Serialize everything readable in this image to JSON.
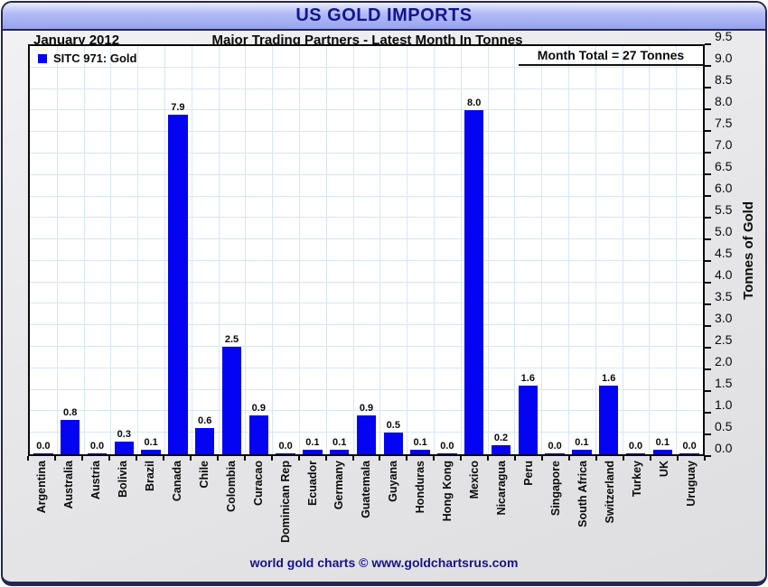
{
  "header": {
    "title": "US GOLD IMPORTS"
  },
  "subtitle": {
    "date": "January 2012",
    "text": "Major Trading Partners - Latest Month In Tonnes"
  },
  "legend": {
    "label": "SITC 971: Gold"
  },
  "annotation": {
    "month_total": "Month Total = 27 Tonnes"
  },
  "footer": {
    "text": "world gold charts © www.goldchartsrus.com"
  },
  "colors": {
    "bar": "#0404F2",
    "grid": "#D7E6F4",
    "accent_navy": "#14148C",
    "titlebar_top": "#E9ECFE",
    "titlebar_bottom": "#98A3EE"
  },
  "chart_data": {
    "type": "bar",
    "title": "US GOLD IMPORTS",
    "subtitle": "Major Trading Partners - Latest Month In Tonnes",
    "period": "January 2012",
    "legend": [
      "SITC 971: Gold"
    ],
    "legend_position": "top-left",
    "annotations": [
      "Month Total = 27 Tonnes"
    ],
    "xlabel": "",
    "ylabel": "Tonnes of Gold",
    "ylim": [
      0,
      9.5
    ],
    "ytick_step": 0.5,
    "grid": true,
    "categories": [
      "Argentina",
      "Australia",
      "Austria",
      "Bolivia",
      "Brazil",
      "Canada",
      "Chile",
      "Colombia",
      "Curacao",
      "Dominican Rep",
      "Ecuador",
      "Germany",
      "Guatemala",
      "Guyana",
      "Honduras",
      "Hong Kong",
      "Mexico",
      "Nicaragua",
      "Peru",
      "Singapore",
      "South Africa",
      "Switzerland",
      "Turkey",
      "UK",
      "Uruguay"
    ],
    "values": [
      0.0,
      0.8,
      0.0,
      0.3,
      0.1,
      7.9,
      0.6,
      2.5,
      0.9,
      0.0,
      0.1,
      0.1,
      0.9,
      0.5,
      0.1,
      0.0,
      8.0,
      0.2,
      1.6,
      0.0,
      0.1,
      1.6,
      0.0,
      0.1,
      0.0
    ],
    "value_labels": [
      "0.0",
      "0.8",
      "0.0",
      "0.3",
      "0.1",
      "7.9",
      "0.6",
      "2.5",
      "0.9",
      "0.0",
      "0.1",
      "0.1",
      "0.9",
      "0.5",
      "0.1",
      "0.0",
      "8.0",
      "0.2",
      "1.6",
      "0.0",
      "0.1",
      "1.6",
      "0.0",
      "0.1",
      "0.0"
    ]
  }
}
